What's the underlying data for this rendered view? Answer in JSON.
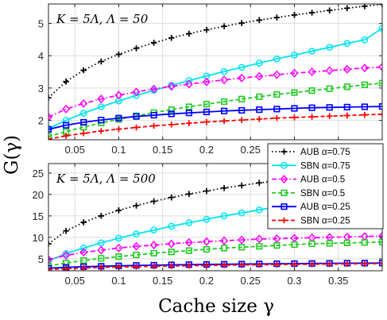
{
  "figure": {
    "ylabel": "G(γ)",
    "xlabel": "Cache size γ"
  },
  "legend": {
    "placement": "right-center",
    "entries": [
      {
        "label": "AUB α=0.75"
      },
      {
        "label": "SBN α=0.75"
      },
      {
        "label": "AUB α=0.5"
      },
      {
        "label": "SBN α=0.5"
      },
      {
        "label": "AUB α=0.25"
      },
      {
        "label": "SBN α=0.25"
      }
    ]
  },
  "chart_data": [
    {
      "type": "line",
      "annotation": "K = 5Λ, Λ = 50",
      "xlim": [
        0.02,
        0.4
      ],
      "ylim": [
        1.4,
        5.6
      ],
      "xticks": [
        0.05,
        0.1,
        0.15,
        0.2,
        0.25,
        0.3,
        0.35
      ],
      "xtick_labels": [
        "0.05",
        "0.1",
        "0.15",
        "0.2",
        "0.25",
        "0.3",
        "0.35"
      ],
      "yticks": [
        2,
        3,
        4,
        5
      ],
      "ytick_labels": [
        "2",
        "3",
        "4",
        "5"
      ],
      "grid": true,
      "x": [
        0.02,
        0.04,
        0.06,
        0.08,
        0.1,
        0.12,
        0.14,
        0.16,
        0.18,
        0.2,
        0.22,
        0.24,
        0.26,
        0.28,
        0.3,
        0.32,
        0.34,
        0.36,
        0.38,
        0.4
      ],
      "series": [
        {
          "name": "AUB α=0.75",
          "color": "#000000",
          "marker": "plus",
          "dash": "dot",
          "values": [
            2.7,
            3.2,
            3.55,
            3.82,
            4.04,
            4.23,
            4.4,
            4.55,
            4.68,
            4.8,
            4.91,
            5.01,
            5.1,
            5.18,
            5.26,
            5.33,
            5.4,
            5.47,
            5.53,
            5.59
          ]
        },
        {
          "name": "SBN α=0.75",
          "color": "#00e5ee",
          "marker": "circle",
          "dash": "solid",
          "values": [
            1.75,
            2.0,
            2.22,
            2.42,
            2.6,
            2.77,
            2.93,
            3.08,
            3.23,
            3.37,
            3.51,
            3.64,
            3.77,
            3.9,
            4.02,
            4.14,
            4.26,
            4.38,
            4.49,
            4.85
          ]
        },
        {
          "name": "AUB α=0.5",
          "color": "#ff00ff",
          "marker": "diamond",
          "dash": "dashdot",
          "values": [
            2.1,
            2.35,
            2.52,
            2.66,
            2.78,
            2.88,
            2.97,
            3.05,
            3.12,
            3.19,
            3.25,
            3.31,
            3.36,
            3.41,
            3.46,
            3.5,
            3.54,
            3.58,
            3.62,
            3.65
          ]
        },
        {
          "name": "SBN α=0.5",
          "color": "#22cc22",
          "marker": "square",
          "dash": "dash",
          "values": [
            1.5,
            1.65,
            1.79,
            1.92,
            2.03,
            2.14,
            2.24,
            2.33,
            2.42,
            2.5,
            2.58,
            2.66,
            2.73,
            2.8,
            2.86,
            2.92,
            2.98,
            3.04,
            3.1,
            3.15
          ]
        },
        {
          "name": "AUB α=0.25",
          "color": "#0000ff",
          "marker": "square",
          "dash": "solid",
          "values": [
            1.72,
            1.85,
            1.94,
            2.01,
            2.07,
            2.12,
            2.16,
            2.2,
            2.23,
            2.26,
            2.29,
            2.31,
            2.33,
            2.35,
            2.37,
            2.39,
            2.4,
            2.41,
            2.42,
            2.43
          ]
        },
        {
          "name": "SBN α=0.25",
          "color": "#ff0000",
          "marker": "plus",
          "dash": "dash",
          "values": [
            1.42,
            1.52,
            1.6,
            1.67,
            1.73,
            1.78,
            1.83,
            1.87,
            1.91,
            1.95,
            1.98,
            2.01,
            2.04,
            2.07,
            2.09,
            2.11,
            2.13,
            2.15,
            2.17,
            2.19
          ]
        }
      ]
    },
    {
      "type": "line",
      "annotation": "K = 5Λ, Λ = 500",
      "xlim": [
        0.02,
        0.4
      ],
      "ylim": [
        2.2,
        27.2
      ],
      "xticks": [
        0.05,
        0.1,
        0.15,
        0.2,
        0.25,
        0.3,
        0.35
      ],
      "xtick_labels": [
        "0.05",
        "0.1",
        "0.15",
        "0.2",
        "0.25",
        "0.3",
        "0.35"
      ],
      "yticks": [
        5,
        10,
        15,
        20,
        25
      ],
      "ytick_labels": [
        "5",
        "10",
        "15",
        "20",
        "25"
      ],
      "grid": true,
      "x": [
        0.02,
        0.04,
        0.06,
        0.08,
        0.1,
        0.12,
        0.14,
        0.16,
        0.18,
        0.2,
        0.22,
        0.24,
        0.26,
        0.28,
        0.3,
        0.32,
        0.34,
        0.36,
        0.38,
        0.4
      ],
      "series": [
        {
          "name": "AUB α=0.75",
          "color": "#000000",
          "marker": "plus",
          "dash": "dot",
          "values": [
            8.5,
            11.5,
            13.5,
            15.0,
            16.3,
            17.4,
            18.4,
            19.3,
            20.1,
            20.8,
            21.5,
            22.1,
            22.7,
            23.2,
            23.7,
            24.2,
            24.6,
            25.0,
            25.4,
            25.8
          ]
        },
        {
          "name": "SBN α=0.75",
          "color": "#00e5ee",
          "marker": "circle",
          "dash": "solid",
          "values": [
            4.5,
            6.2,
            7.5,
            8.7,
            9.8,
            10.8,
            11.7,
            12.6,
            13.4,
            14.2,
            15.0,
            15.7,
            16.4,
            17.1,
            17.8,
            18.4,
            19.0,
            19.6,
            20.2,
            21.6
          ]
        },
        {
          "name": "AUB α=0.5",
          "color": "#ff00ff",
          "marker": "diamond",
          "dash": "dashdot",
          "values": [
            4.8,
            5.8,
            6.5,
            7.0,
            7.5,
            7.9,
            8.2,
            8.5,
            8.8,
            9.0,
            9.2,
            9.4,
            9.6,
            9.7,
            9.8,
            9.9,
            10.0,
            10.1,
            10.2,
            10.3
          ]
        },
        {
          "name": "SBN α=0.5",
          "color": "#22cc22",
          "marker": "square",
          "dash": "dash",
          "values": [
            3.3,
            4.0,
            4.6,
            5.1,
            5.5,
            5.9,
            6.3,
            6.6,
            6.9,
            7.2,
            7.5,
            7.7,
            7.9,
            8.1,
            8.3,
            8.5,
            8.6,
            8.7,
            8.8,
            8.9
          ]
        },
        {
          "name": "AUB α=0.25",
          "color": "#0000ff",
          "marker": "square",
          "dash": "solid",
          "values": [
            2.8,
            3.0,
            3.15,
            3.25,
            3.35,
            3.45,
            3.5,
            3.58,
            3.63,
            3.68,
            3.72,
            3.76,
            3.8,
            3.84,
            3.87,
            3.9,
            3.93,
            3.96,
            3.98,
            4.0
          ]
        },
        {
          "name": "SBN α=0.25",
          "color": "#ff0000",
          "marker": "plus",
          "dash": "dash",
          "values": [
            2.5,
            2.7,
            2.85,
            2.98,
            3.08,
            3.17,
            3.25,
            3.32,
            3.38,
            3.44,
            3.5,
            3.55,
            3.6,
            3.65,
            3.69,
            3.73,
            3.77,
            3.8,
            3.83,
            3.86
          ]
        }
      ]
    }
  ]
}
